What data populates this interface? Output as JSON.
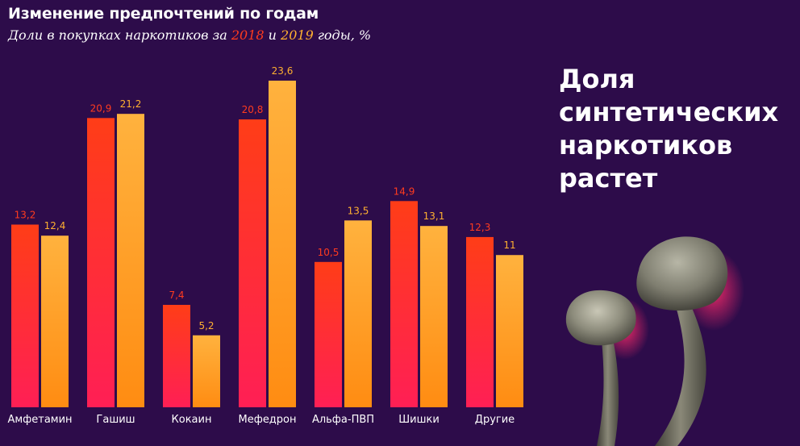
{
  "chart_data": {
    "type": "bar",
    "title": "Изменение предпочтений по годам",
    "subtitle": {
      "prefix": "Доли в покупках наркотиков за ",
      "year1": "2018",
      "middle": " и ",
      "year2": "2019",
      "suffix": " годы, %"
    },
    "categories": [
      "Амфетамин",
      "Гашиш",
      "Кокаин",
      "Мефедрон",
      "Альфа-ПВП",
      "Шишки",
      "Другие"
    ],
    "series": [
      {
        "name": "2018",
        "values": [
          13.2,
          20.9,
          7.4,
          20.8,
          10.5,
          14.9,
          12.3
        ],
        "labels": [
          "13,2",
          "20,9",
          "7,4",
          "20,8",
          "10,5",
          "14,9",
          "12,3"
        ]
      },
      {
        "name": "2019",
        "values": [
          12.4,
          21.2,
          5.2,
          23.6,
          13.5,
          13.1,
          11
        ],
        "labels": [
          "12,4",
          "21,2",
          "5,2",
          "23,6",
          "13,5",
          "13,1",
          "11"
        ]
      }
    ],
    "ylim": [
      0,
      24
    ],
    "grid": false,
    "colors": {
      "2018": {
        "top": "#ff3d17",
        "bottom": "#ff1f55",
        "label": "#ff3b1e"
      },
      "2019": {
        "top": "#ffb23e",
        "bottom": "#ff8c12",
        "label": "#ffb030"
      }
    }
  },
  "headline": [
    "Доля",
    "синтетических",
    "наркотиков",
    "растет"
  ],
  "colors": {
    "background": "#2d0c4a",
    "text": "#ffffff"
  },
  "illustration": {
    "icon": "mushrooms-illustration"
  }
}
